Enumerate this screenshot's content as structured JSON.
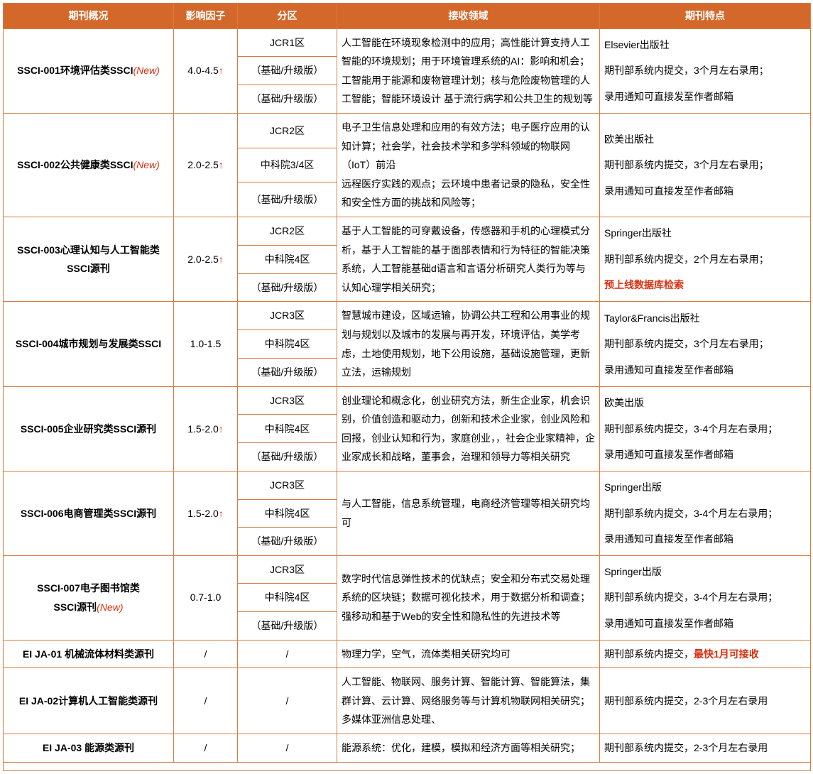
{
  "headers": {
    "overview": "期刊概况",
    "impact": "影响因子",
    "zone": "分区",
    "domain": "接收领域",
    "feature": "期刊特点"
  },
  "new_tag": "(New)",
  "rows": [
    {
      "name": "SSCI-001环境评估类SSCI",
      "is_new": true,
      "impact": "4.0-4.5",
      "impact_up": true,
      "zones": [
        "JCR1区",
        "（基础/升级版）",
        "（基础/升级版）"
      ],
      "domain": "人工智能在环境现象检测中的应用；高性能计算支持人工智能的环境规划；用于环境管理系统的AI：影响和机会；工智能用于能源和废物管理计划；核与危险废物管理的人工智能；智能环境设计 基于流行病学和公共卫生的规划等",
      "features": [
        {
          "text": "Elsevier出版社"
        },
        {
          "text": "期刊部系统内提交，3个月左右录用；"
        },
        {
          "text": "录用通知可直接发至作者邮箱"
        }
      ]
    },
    {
      "name": "SSCI-002公共健康类SSCI",
      "is_new": true,
      "impact": "2.0-2.5",
      "impact_up": true,
      "zones": [
        "JCR2区",
        "中科院3/4区",
        "（基础/升级版）"
      ],
      "domain": "电子卫生信息处理和应用的有效方法；电子医疗应用的认知计算；社会学，社会技术学和多学科领域的物联网（IoT）前沿\n远程医疗实践的观点；云环境中患者记录的隐私，安全性和安全性方面的挑战和风险等；",
      "features": [
        {
          "text": "欧美出版社"
        },
        {
          "text": "期刊部系统内提交，3个月左右录用；"
        },
        {
          "text": "录用通知可直接发至作者邮箱"
        }
      ]
    },
    {
      "name": "SSCI-003心理认知与人工智能类SSCI源刊",
      "name_break": "SSCI-003心理认知与人工智能类<br>SSCI源刊",
      "is_new": false,
      "impact": "2.0-2.5",
      "impact_up": true,
      "zones": [
        "JCR2区",
        "中科院4区",
        "（基础/升级版）"
      ],
      "domain": "基于人工智能的可穿戴设备，传感器和手机的心理模式分析，基于人工智能的基于面部表情和行为特征的智能决策系统，人工智能基础d语言和言语分析研究人类行为等与认知心理学相关研究；",
      "features": [
        {
          "text": "Springer出版社"
        },
        {
          "text": "期刊部系统内提交，2个月左右录用；"
        },
        {
          "text": "预上线数据库检索",
          "red": true
        }
      ]
    },
    {
      "name": "SSCI-004城市规划与发展类SSCI",
      "is_new": false,
      "impact": "1.0-1.5",
      "impact_up": false,
      "zones": [
        "JCR3区",
        "中科院4区",
        "（基础/升级版）"
      ],
      "domain": "智慧城市建设，区域运输，协调公共工程和公用事业的规划与规划以及城市的发展与再开发，环境评估，美学考虑，土地使用规划，地下公用设施，基础设施管理，更新立法，运输规划",
      "features": [
        {
          "text": "Taylor&Francis出版社"
        },
        {
          "text": "期刊部系统内提交，3个月左右录用；"
        },
        {
          "text": "录用通知可直接发至作者邮箱"
        }
      ]
    },
    {
      "name": "SSCI-005企业研究类SSCI源刊",
      "is_new": false,
      "impact": "1.5-2.0",
      "impact_up": true,
      "zones": [
        "JCR3区",
        "中科院4区",
        "（基础/升级版）"
      ],
      "domain": "创业理论和概念化，创业研究方法，新生企业家，机会识别，价值创造和驱动力，创新和技术企业家，创业风险和回报，创业认知和行为，家庭创业，，社会企业家精神，企业家成长和战略，董事会，治理和领导力等相关研究",
      "features": [
        {
          "text": "欧美出版"
        },
        {
          "text": "期刊部系统内提交，3-4个月左右录用；"
        },
        {
          "text": "录用通知可直接发至作者邮箱"
        }
      ]
    },
    {
      "name": "SSCI-006电商管理类SSCI源刊",
      "is_new": false,
      "impact": "1.5-2.0",
      "impact_up": true,
      "zones": [
        "JCR3区",
        "中科院4区",
        "（基础/升级版）"
      ],
      "domain": "与人工智能，信息系统管理，电商经济管理等相关研究均可",
      "features": [
        {
          "text": "Springer出版"
        },
        {
          "text": "期刊部系统内提交，3-4个月左右录用；"
        },
        {
          "text": "录用通知可直接发至作者邮箱"
        }
      ]
    },
    {
      "name": "SSCI-007电子图书馆类",
      "name_line2": "SSCI源刊",
      "is_new": true,
      "impact": "0.7-1.0",
      "impact_up": false,
      "zones": [
        "JCR3区",
        "中科院4区",
        "（基础/升级版）"
      ],
      "domain": "数字时代信息弹性技术的优缺点；安全和分布式交易处理系统的区块链；数据可视化技术，用于数据分析和调查；强移动和基于Web的安全性和隐私性的先进技术等",
      "features": [
        {
          "text": "Springer出版"
        },
        {
          "text": "期刊部系统内提交，3-4个月左右录用；"
        },
        {
          "text": "录用通知可直接发至作者邮箱"
        }
      ]
    }
  ],
  "ei_rows": [
    {
      "name": "EI JA-01 机械流体材料类源刊",
      "impact": "/",
      "zone": "/",
      "domain": "物理力学，空气，流体类相关研究均可",
      "feature_prefix": "期刊部系统内提交，",
      "feature_red": "最快1月可接收"
    },
    {
      "name": "EI JA-02计算机人工智能类源刊",
      "impact": "/",
      "zone": "/",
      "domain": "人工智能、物联网、服务计算、智能计算、智能算法，集群计算、云计算、网络服务等与计算机物联网相关研究；多媒体亚洲信息处理、",
      "feature": "期刊部系统内提交，2-3个月左右录用"
    },
    {
      "name": "EI JA-03 能源类源刊",
      "impact": "/",
      "zone": "/",
      "domain": "能源系统：优化，建模，模拟和经济方面等相关研究；",
      "feature": "期刊部系统内提交，2-3个月左右录用"
    }
  ]
}
